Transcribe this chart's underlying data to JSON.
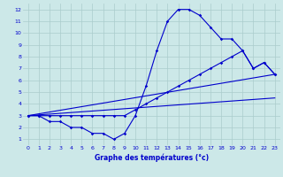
{
  "xlabel": "Graphe des températures (°c)",
  "background_color": "#cce8e8",
  "line_color": "#0000cc",
  "grid_color": "#aacccc",
  "xlim": [
    -0.5,
    23.5
  ],
  "ylim": [
    0.5,
    12.5
  ],
  "yticks": [
    1,
    2,
    3,
    4,
    5,
    6,
    7,
    8,
    9,
    10,
    11,
    12
  ],
  "xticks": [
    0,
    1,
    2,
    3,
    4,
    5,
    6,
    7,
    8,
    9,
    10,
    11,
    12,
    13,
    14,
    15,
    16,
    17,
    18,
    19,
    20,
    21,
    22,
    23
  ],
  "line1_x": [
    0,
    1,
    2,
    3,
    4,
    5,
    6,
    7,
    8,
    9,
    10,
    11,
    12,
    13,
    14,
    15,
    16,
    17,
    18,
    19,
    20,
    21,
    22,
    23
  ],
  "line1_y": [
    3,
    3,
    2.5,
    2.5,
    2,
    2,
    1.5,
    1.5,
    1,
    1.5,
    3,
    5.5,
    8.5,
    11,
    12,
    12,
    11.5,
    10.5,
    9.5,
    9.5,
    8.5,
    7,
    7.5,
    6.5
  ],
  "line2_x": [
    0,
    1,
    2,
    3,
    4,
    5,
    6,
    7,
    8,
    9,
    10,
    11,
    12,
    13,
    14,
    15,
    16,
    17,
    18,
    19,
    20,
    21,
    22,
    23
  ],
  "line2_y": [
    3,
    3,
    3,
    3,
    3,
    3,
    3,
    3,
    3,
    3,
    3.5,
    4,
    4.5,
    5,
    5.5,
    6,
    6.5,
    7,
    7.5,
    8,
    8.5,
    7,
    7.5,
    6.5
  ],
  "line3_x": [
    0,
    23
  ],
  "line3_y": [
    3,
    4.5
  ],
  "line4_x": [
    0,
    23
  ],
  "line4_y": [
    3,
    6.5
  ]
}
